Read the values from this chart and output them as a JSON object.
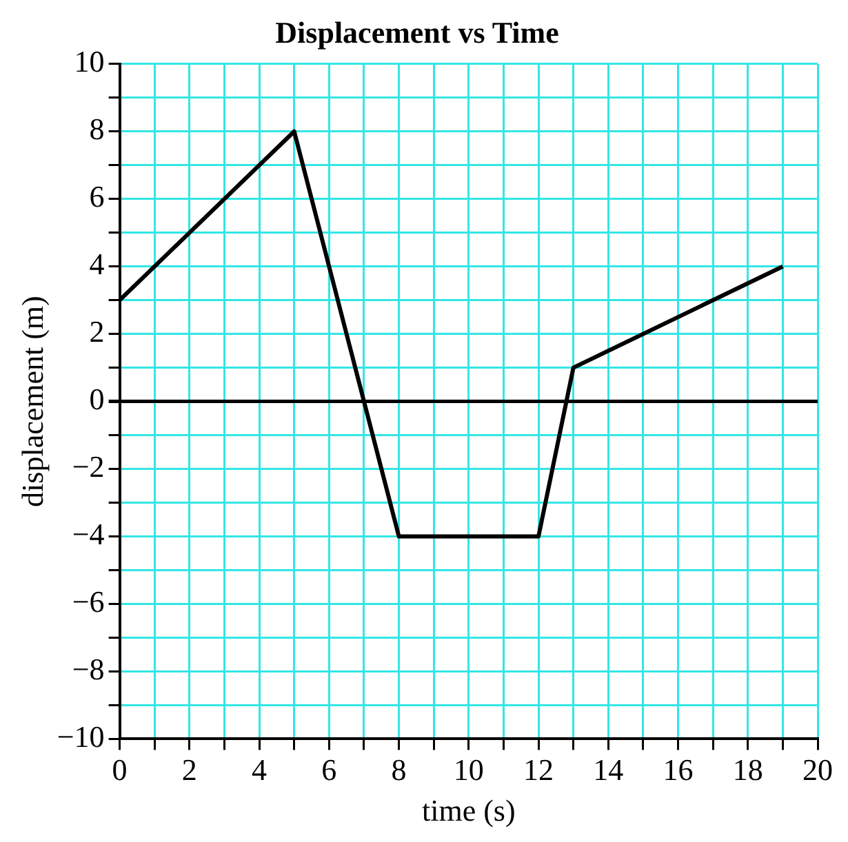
{
  "chart_data": {
    "type": "line",
    "title": "Displacement vs Time",
    "xlabel": "time (s)",
    "ylabel": "displacement (m)",
    "x": [
      0,
      5,
      8,
      12,
      13,
      19
    ],
    "series": [
      {
        "color": "#000000",
        "values": [
          3,
          8,
          -4,
          -4,
          1,
          4
        ]
      }
    ],
    "xlim": [
      0,
      20
    ],
    "xticks": [
      0,
      {
        "value": 1,
        "label": null
      },
      2,
      {
        "value": 3,
        "label": null
      },
      4,
      {
        "value": 5,
        "label": null
      },
      6,
      {
        "value": 7,
        "label": null
      },
      8,
      {
        "value": 9,
        "label": null
      },
      10,
      {
        "value": 11,
        "label": null
      },
      12,
      {
        "value": 13,
        "label": null
      },
      14,
      {
        "value": 15,
        "label": null
      },
      16,
      {
        "value": 17,
        "label": null
      },
      18,
      {
        "value": 19,
        "label": null
      },
      20
    ],
    "ylim": [
      -10,
      10
    ],
    "yticks": [
      {
        "value": -10,
        "label": "−10"
      },
      {
        "value": -9,
        "label": null
      },
      {
        "value": -8,
        "label": "−8"
      },
      {
        "value": -7,
        "label": null
      },
      {
        "value": -6,
        "label": "−6"
      },
      {
        "value": -5,
        "label": null
      },
      {
        "value": -4,
        "label": "−4"
      },
      {
        "value": -3,
        "label": null
      },
      {
        "value": -2,
        "label": "−2"
      },
      {
        "value": -1,
        "label": null
      },
      0,
      {
        "value": 1,
        "label": null
      },
      2,
      {
        "value": 3,
        "label": null
      },
      4,
      {
        "value": 5,
        "label": null
      },
      6,
      {
        "value": 7,
        "label": null
      },
      8,
      {
        "value": 9,
        "label": null
      },
      10
    ],
    "grid": true,
    "legend": false,
    "marker": "none",
    "line_style": "solid"
  }
}
